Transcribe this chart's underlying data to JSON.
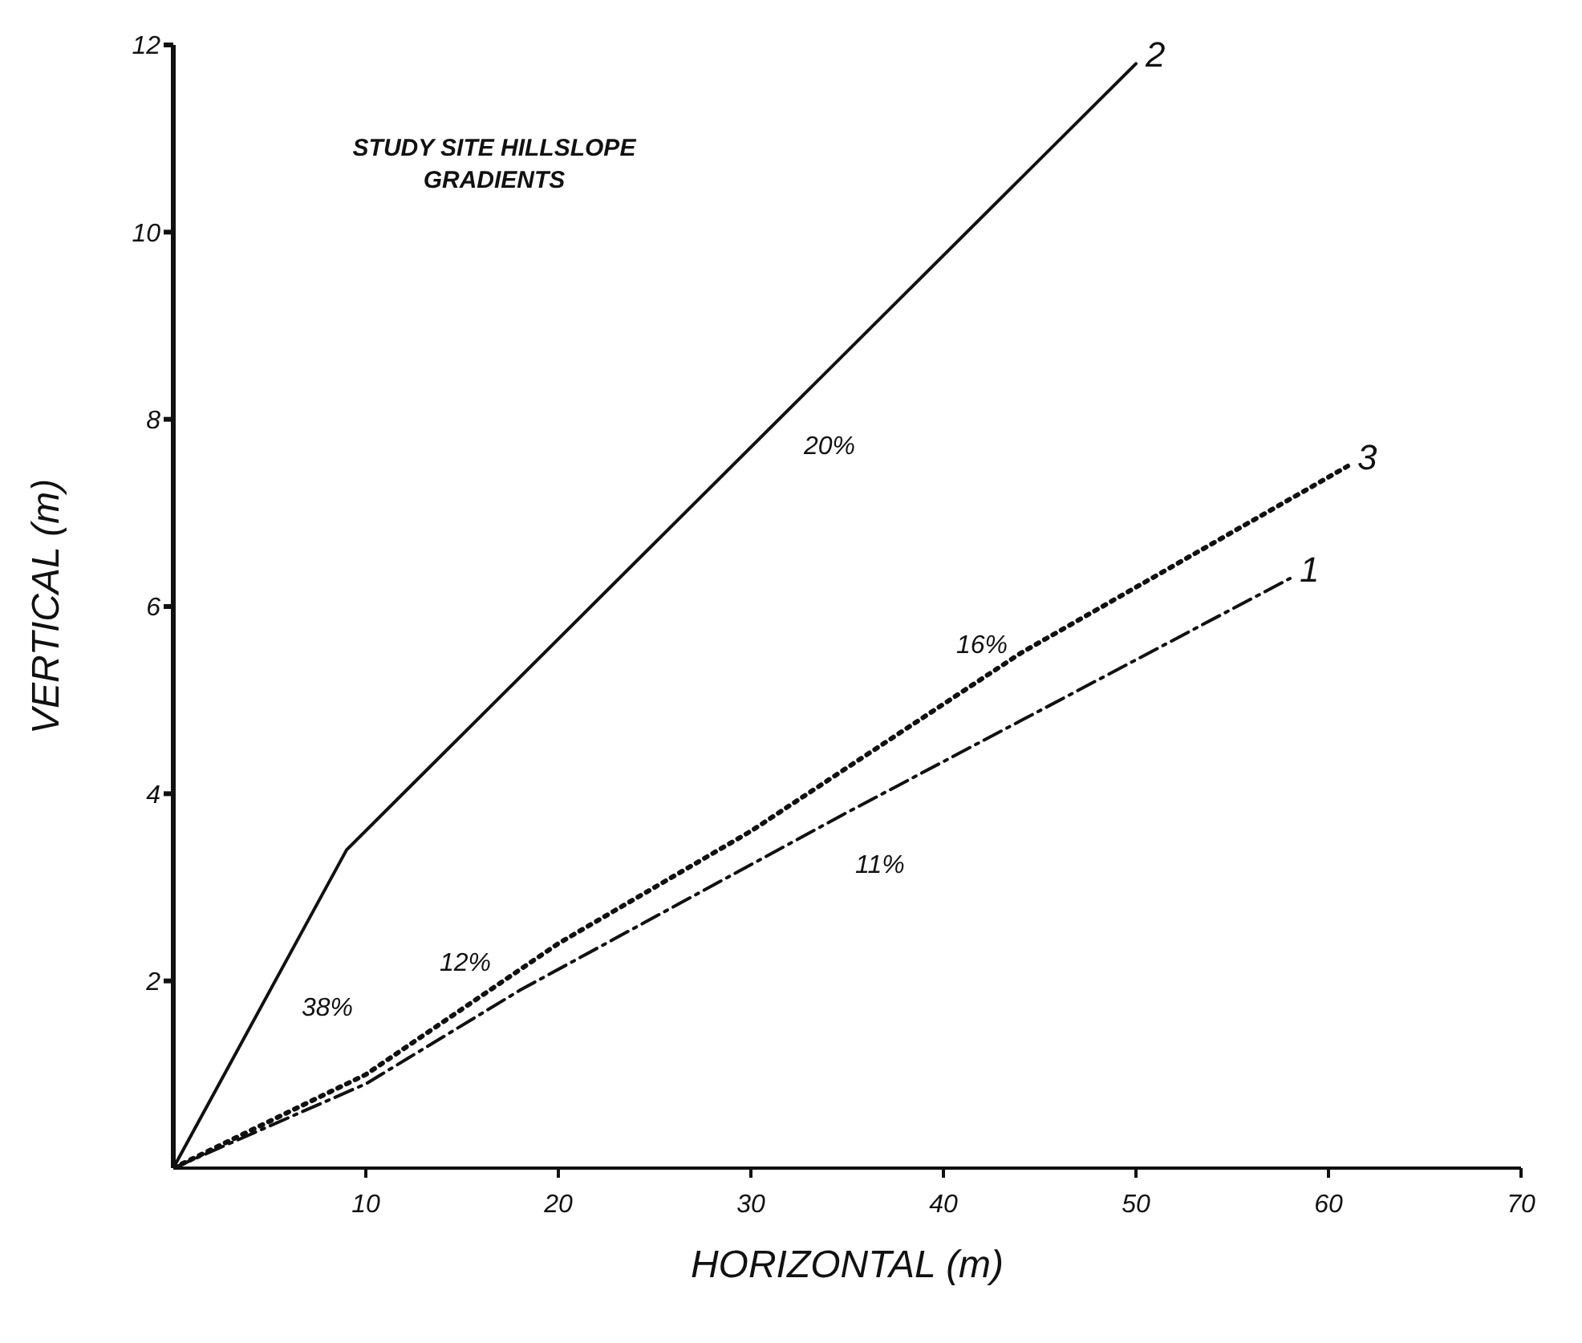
{
  "chart_data": {
    "type": "line",
    "title": "STUDY SITE HILLSLOPE GRADIENTS",
    "xlabel": "HORIZONTAL (m)",
    "ylabel": "VERTICAL (m)",
    "xlim": [
      0,
      70
    ],
    "xticks": [
      10,
      20,
      30,
      40,
      50,
      60,
      70
    ],
    "ylim": [
      0,
      12
    ],
    "yticks": [
      2,
      4,
      6,
      8,
      10,
      12
    ],
    "grid": false,
    "legend": false,
    "series": [
      {
        "name": "2",
        "color": "#111111",
        "line_style": "solid",
        "x": [
          0,
          9,
          50
        ],
        "values": [
          0,
          3.4,
          11.8
        ]
      },
      {
        "name": "3",
        "color": "#111111",
        "line_style": "dotted",
        "x": [
          0,
          10,
          20,
          30,
          44,
          61
        ],
        "values": [
          0,
          1,
          2.4,
          3.6,
          5.5,
          7.5
        ]
      },
      {
        "name": "1",
        "color": "#111111",
        "line_style": "dashdot",
        "x": [
          0,
          10,
          18,
          35,
          58
        ],
        "values": [
          0,
          0.9,
          1.9,
          3.8,
          6.3
        ]
      }
    ],
    "annotations": [
      "38%",
      "12%",
      "11%",
      "16%",
      "20%"
    ]
  }
}
